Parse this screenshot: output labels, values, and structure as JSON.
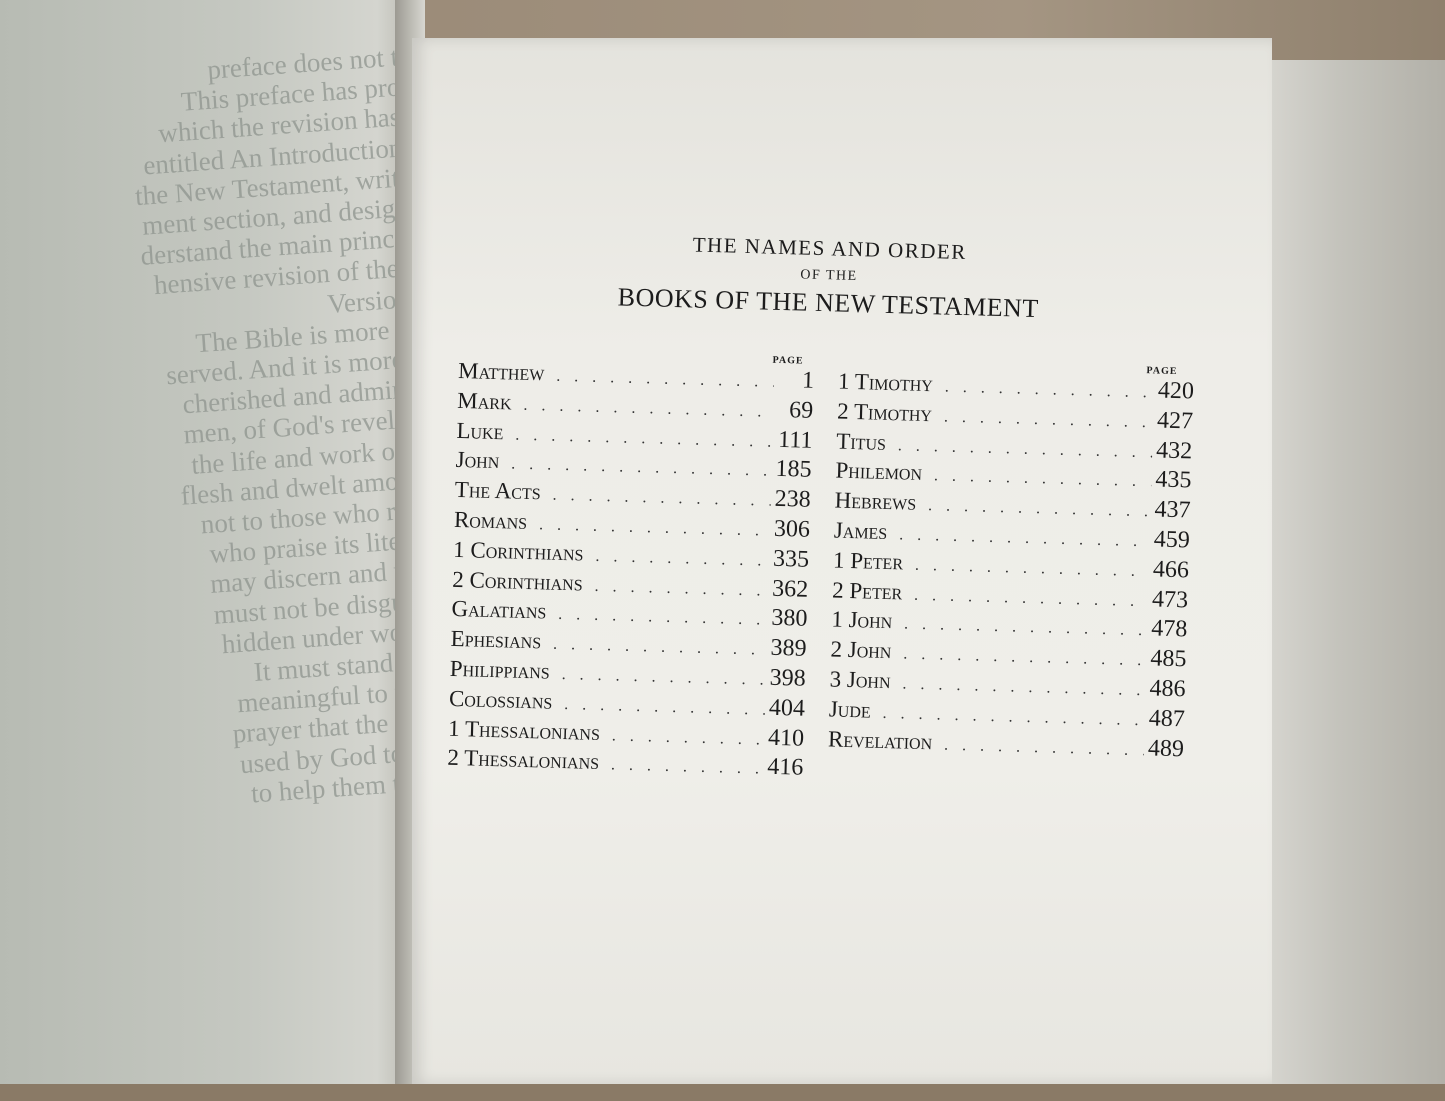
{
  "left_page": {
    "lines": [
      "preface does not ta",
      "This preface has proc",
      "which the revision has t",
      "entitled An Introduction t",
      "the New Testament, writte",
      "ment section, and designe",
      "derstand the main principl",
      "hensive revision of the K",
      "Versions.",
      "The Bible is more tha",
      "served. And it is more th",
      "cherished and admired,",
      "men, of God's revelatio",
      "the life and work of Hi",
      "flesh and dwelt among t",
      "not to those who regar",
      "who praise its literary",
      "may discern and unde",
      "must not be disguised",
      "hidden under words t",
      "It must stand forth",
      "meaningful to peopl",
      "prayer that the Revis",
      "used by God to spea",
      "to help them to und"
    ]
  },
  "heading": {
    "line1": "THE NAMES AND ORDER",
    "line2": "OF THE",
    "line3": "BOOKS OF THE NEW TESTAMENT"
  },
  "page_label": "PAGE",
  "column_left": [
    {
      "name": "Matthew",
      "page": "1"
    },
    {
      "name": "Mark",
      "page": "69"
    },
    {
      "name": "Luke",
      "page": "111"
    },
    {
      "name": "John",
      "page": "185"
    },
    {
      "name": "The Acts",
      "page": "238"
    },
    {
      "name": "Romans",
      "page": "306"
    },
    {
      "name": "1 Corinthians",
      "page": "335"
    },
    {
      "name": "2 Corinthians",
      "page": "362"
    },
    {
      "name": "Galatians",
      "page": "380"
    },
    {
      "name": "Ephesians",
      "page": "389"
    },
    {
      "name": "Philippians",
      "page": "398"
    },
    {
      "name": "Colossians",
      "page": "404"
    },
    {
      "name": "1 Thessalonians",
      "page": "410"
    },
    {
      "name": "2 Thessalonians",
      "page": "416"
    }
  ],
  "column_right": [
    {
      "name": "1 Timothy",
      "page": "420"
    },
    {
      "name": "2 Timothy",
      "page": "427"
    },
    {
      "name": "Titus",
      "page": "432"
    },
    {
      "name": "Philemon",
      "page": "435"
    },
    {
      "name": "Hebrews",
      "page": "437"
    },
    {
      "name": "James",
      "page": "459"
    },
    {
      "name": "1 Peter",
      "page": "466"
    },
    {
      "name": "2 Peter",
      "page": "473"
    },
    {
      "name": "1 John",
      "page": "478"
    },
    {
      "name": "2 John",
      "page": "485"
    },
    {
      "name": "3 John",
      "page": "486"
    },
    {
      "name": "Jude",
      "page": "487"
    },
    {
      "name": "Revelation",
      "page": "489"
    }
  ]
}
